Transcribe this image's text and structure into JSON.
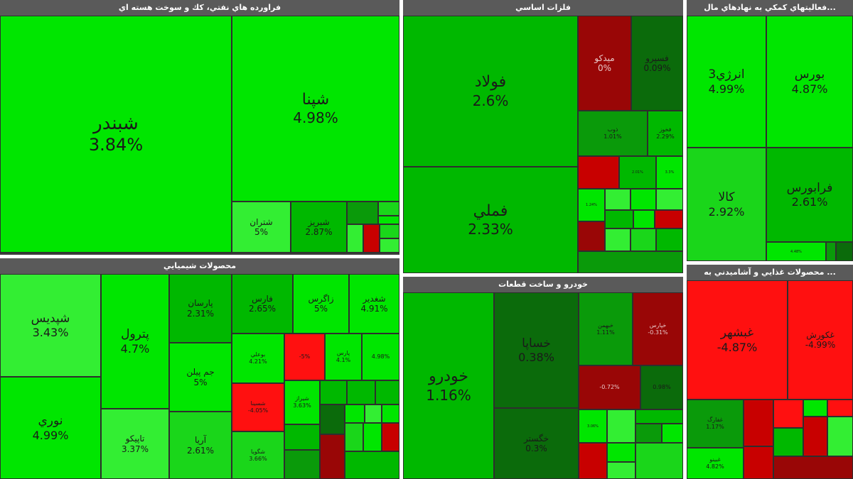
{
  "panels": {
    "oil": {
      "title": "فراورده هاي نفتي، كك و سوخت هسته اي"
    },
    "metals": {
      "title": "فلزات اساسي"
    },
    "finance": {
      "title": "...فعاليتهاي كمكي به نهادهاي مال"
    },
    "chem": {
      "title": "محصولات شيميايي"
    },
    "auto": {
      "title": "خودرو و ساخت قطعات"
    },
    "food": {
      "title": "... محصولات غذايي و آشاميدني به"
    }
  },
  "tiles": {
    "shabandar": {
      "name": "شبندر",
      "pct": "3.84%"
    },
    "shepna": {
      "name": "شپنا",
      "pct": "4.98%"
    },
    "shetran": {
      "name": "شتران",
      "pct": "5%"
    },
    "shebriz": {
      "name": "شبريز",
      "pct": "2.87%"
    },
    "oil_s1": {
      "name": "",
      "pct": ""
    },
    "oil_s2": {
      "name": "",
      "pct": ""
    },
    "oil_s3": {
      "name": "",
      "pct": ""
    },
    "oil_s4": {
      "name": "",
      "pct": ""
    },
    "oil_s5": {
      "name": "",
      "pct": ""
    },
    "oil_s6": {
      "name": "",
      "pct": ""
    },
    "oil_s7": {
      "name": "",
      "pct": ""
    },
    "foolad": {
      "name": "فولاد",
      "pct": "2.6%"
    },
    "fameli": {
      "name": "فملي",
      "pct": "2.33%"
    },
    "midco": {
      "name": "ميدكو",
      "pct": "0%"
    },
    "fasepa": {
      "name": "فسپرو",
      "pct": "0.09%"
    },
    "zob": {
      "name": "ذوب",
      "pct": "1.01%"
    },
    "fakhoz": {
      "name": "فخوز",
      "pct": "2.29%"
    },
    "met_s1": {
      "name": "",
      "pct": ""
    },
    "met_s2": {
      "name": "",
      "pct": "2.01%"
    },
    "met_s3": {
      "name": "",
      "pct": "3.3%"
    },
    "met_s4": {
      "name": "",
      "pct": "1.24%"
    },
    "met_s5": {
      "name": "",
      "pct": ""
    },
    "met_s6": {
      "name": "",
      "pct": ""
    },
    "met_s7": {
      "name": "",
      "pct": ""
    },
    "met_s8": {
      "name": "",
      "pct": ""
    },
    "met_s9": {
      "name": "",
      "pct": ""
    },
    "met_s10": {
      "name": "",
      "pct": ""
    },
    "met_s11": {
      "name": "",
      "pct": ""
    },
    "met_s12": {
      "name": "",
      "pct": ""
    },
    "met_s13": {
      "name": "",
      "pct": ""
    },
    "met_s14": {
      "name": "",
      "pct": ""
    },
    "met_s15": {
      "name": "",
      "pct": ""
    },
    "energy3": {
      "name": "انرژي3",
      "pct": "4.99%"
    },
    "boors": {
      "name": "بورس",
      "pct": "4.87%"
    },
    "kala": {
      "name": "كالا",
      "pct": "2.92%"
    },
    "faraboors": {
      "name": "فرابورس",
      "pct": "2.61%"
    },
    "fin_s1": {
      "name": "",
      "pct": "4.48%"
    },
    "fin_s2": {
      "name": "",
      "pct": ""
    },
    "fin_s3": {
      "name": "",
      "pct": ""
    },
    "shepdis": {
      "name": "شپديس",
      "pct": "3.43%"
    },
    "noori": {
      "name": "نوري",
      "pct": "4.99%"
    },
    "petrol": {
      "name": "پترول",
      "pct": "4.7%"
    },
    "tapiko": {
      "name": "تاپيكو",
      "pct": "3.37%"
    },
    "parsan": {
      "name": "پارسان",
      "pct": "2.31%"
    },
    "jam": {
      "name": "جم پيلن",
      "pct": "5%"
    },
    "arya": {
      "name": "آريا",
      "pct": "2.61%"
    },
    "fars": {
      "name": "فارس",
      "pct": "2.65%"
    },
    "zagros": {
      "name": "زاگرس",
      "pct": "5%"
    },
    "shaghadir": {
      "name": "شغدير",
      "pct": "4.91%"
    },
    "booali": {
      "name": "بوعلي",
      "pct": "4.21%"
    },
    "chem_r1": {
      "name": "",
      "pct": "-5%"
    },
    "chem_g1": {
      "name": "پارس",
      "pct": "4.1%"
    },
    "chem_g2": {
      "name": "",
      "pct": "4.98%"
    },
    "shesina": {
      "name": "شسينا",
      "pct": "-4.05%"
    },
    "shiraz": {
      "name": "شيراز",
      "pct": "3.63%"
    },
    "shegoya": {
      "name": "شگويا",
      "pct": "3.66%"
    },
    "chem_s1": {
      "name": "",
      "pct": ""
    },
    "chem_s2": {
      "name": "",
      "pct": ""
    },
    "chem_s3": {
      "name": "",
      "pct": ""
    },
    "chem_s4": {
      "name": "",
      "pct": ""
    },
    "chem_s5": {
      "name": "",
      "pct": ""
    },
    "chem_s6": {
      "name": "",
      "pct": ""
    },
    "chem_s7": {
      "name": "",
      "pct": ""
    },
    "chem_s8": {
      "name": "",
      "pct": ""
    },
    "chem_s9": {
      "name": "",
      "pct": ""
    },
    "chem_s10": {
      "name": "",
      "pct": ""
    },
    "chem_s11": {
      "name": "",
      "pct": ""
    },
    "chem_s12": {
      "name": "",
      "pct": ""
    },
    "chem_s13": {
      "name": "",
      "pct": ""
    },
    "chem_s14": {
      "name": "",
      "pct": ""
    },
    "khodro": {
      "name": "خودرو",
      "pct": "1.16%"
    },
    "khsapa": {
      "name": "خساپا",
      "pct": "0.38%"
    },
    "khegostar": {
      "name": "خگستر",
      "pct": "0.3%"
    },
    "khebahman": {
      "name": "خبهمن",
      "pct": "1.11%"
    },
    "khepars": {
      "name": "خپارس",
      "pct": "-0.31%"
    },
    "auto_r1": {
      "name": "",
      "pct": "-0.72%"
    },
    "auto_g1": {
      "name": "",
      "pct": "0.98%"
    },
    "auto_s1": {
      "name": "",
      "pct": "3.06%"
    },
    "auto_s2": {
      "name": "",
      "pct": ""
    },
    "auto_s3": {
      "name": "",
      "pct": ""
    },
    "auto_s4": {
      "name": "",
      "pct": ""
    },
    "auto_s5": {
      "name": "",
      "pct": ""
    },
    "auto_s6": {
      "name": "",
      "pct": ""
    },
    "auto_s7": {
      "name": "",
      "pct": ""
    },
    "auto_s8": {
      "name": "",
      "pct": ""
    },
    "auto_s9": {
      "name": "",
      "pct": ""
    },
    "ghebeshahr": {
      "name": "غبشهر",
      "pct": "-4.87%"
    },
    "ghekoorosh": {
      "name": "غكورش",
      "pct": "-4.99%"
    },
    "ghefarg": {
      "name": "غفارگ",
      "pct": "1.17%"
    },
    "ghebino": {
      "name": "غبينو",
      "pct": "4.82%"
    },
    "food_s1": {
      "name": "",
      "pct": ""
    },
    "food_s2": {
      "name": "",
      "pct": ""
    },
    "food_s3": {
      "name": "",
      "pct": ""
    },
    "food_s4": {
      "name": "",
      "pct": ""
    },
    "food_s5": {
      "name": "",
      "pct": ""
    },
    "food_s6": {
      "name": "",
      "pct": ""
    },
    "food_s7": {
      "name": "",
      "pct": ""
    },
    "food_s8": {
      "name": "",
      "pct": ""
    },
    "food_s9": {
      "name": "",
      "pct": ""
    }
  },
  "colors": {
    "strong_up": "#00e600",
    "up": "#1ad61a",
    "mild_up": "#0a9a0a",
    "flat": "#0b6b0b",
    "down": "#c80000",
    "strong_down": "#ff1010"
  }
}
